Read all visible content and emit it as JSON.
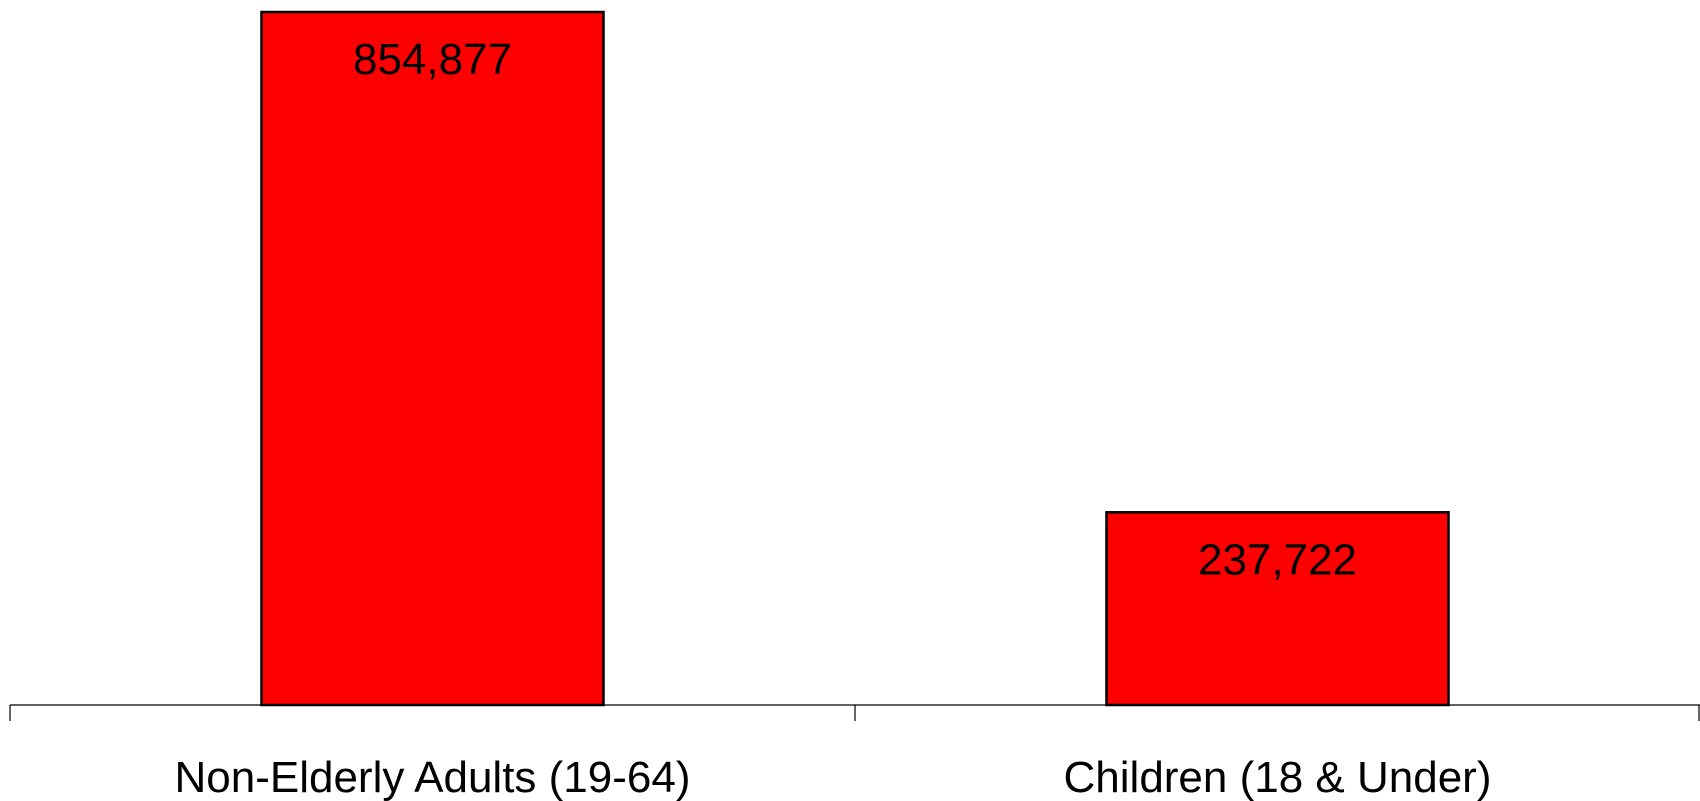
{
  "chart_data": {
    "type": "bar",
    "categories": [
      "Non-Elderly Adults (19-64)",
      "Children (18 & Under)"
    ],
    "values": [
      854877,
      237722
    ],
    "value_labels": [
      "854,877",
      "237,722"
    ],
    "title": "",
    "xlabel": "",
    "ylabel": "",
    "ylim": [
      0,
      854877
    ],
    "grid": false,
    "legend": "none",
    "colors": {
      "bar_fill": "#ff0000",
      "bar_stroke": "#000000",
      "axis": "#000000",
      "text": "#000000"
    }
  }
}
